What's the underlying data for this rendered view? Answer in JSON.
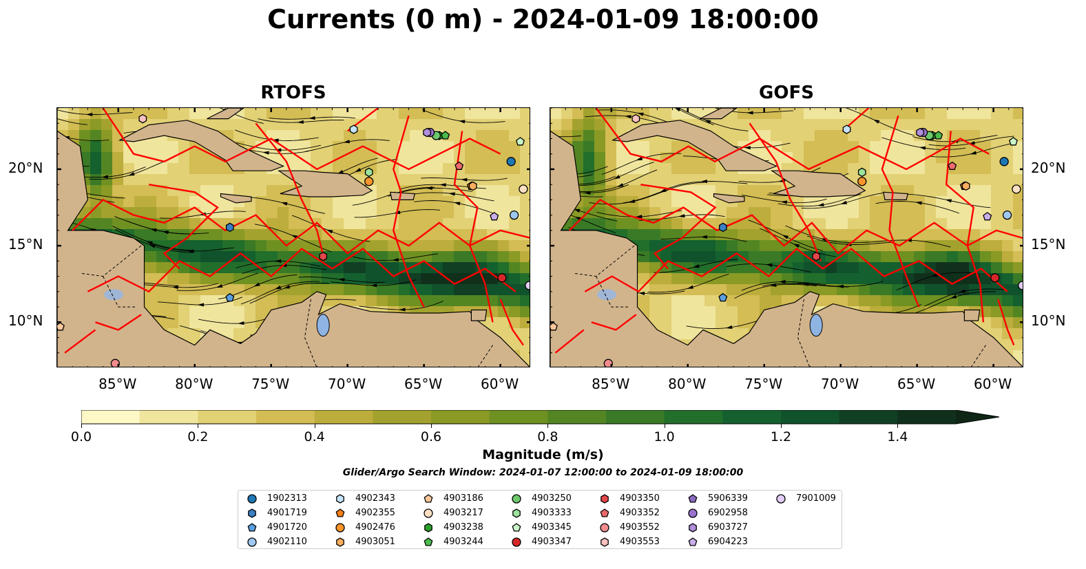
{
  "title": "Currents (0 m) - 2024-01-09 18:00:00",
  "panels": [
    {
      "title": "RTOFS"
    },
    {
      "title": "GOFS"
    }
  ],
  "x_ticks": [
    "85°W",
    "80°W",
    "75°W",
    "70°W",
    "65°W",
    "60°W"
  ],
  "x_tick_lons": [
    -85,
    -80,
    -75,
    -70,
    -65,
    -60
  ],
  "y_ticks": [
    "20°N",
    "15°N",
    "10°N"
  ],
  "y_tick_lats": [
    20,
    15,
    10
  ],
  "extent": {
    "lon": [
      -89,
      -58
    ],
    "lat": [
      7,
      24
    ]
  },
  "colorbar": {
    "label": "Magnitude (m/s)",
    "ticks": [
      "0.0",
      "0.2",
      "0.4",
      "0.6",
      "0.8",
      "1.0",
      "1.2",
      "1.4"
    ],
    "tick_values": [
      0,
      0.2,
      0.4,
      0.6,
      0.8,
      1.0,
      1.2,
      1.4
    ],
    "range": [
      0,
      1.5
    ],
    "colors": [
      "#fdf8c6",
      "#f0e59c",
      "#e2d175",
      "#d3bd54",
      "#bcad3c",
      "#a3a22e",
      "#8a9a25",
      "#6f9122",
      "#538623",
      "#3a7a26",
      "#226e2b",
      "#14612f",
      "#10522c",
      "#103f24",
      "#10301c"
    ],
    "extend_color": "#0f2616"
  },
  "search_window": "Glider/Argo Search Window: 2024-01-07 12:00:00 to 2024-01-09 18:00:00",
  "land_color": "#d2b48c",
  "track_color": "#ff0000",
  "legend": [
    {
      "id": "1902313",
      "marker": "circle",
      "color": "#1f77b4"
    },
    {
      "id": "4901719",
      "marker": "hexagon",
      "color": "#3b7fc4"
    },
    {
      "id": "4901720",
      "marker": "pentagon",
      "color": "#5a9fe0"
    },
    {
      "id": "4902110",
      "marker": "circle",
      "color": "#9ec8ef"
    },
    {
      "id": "4902343",
      "marker": "hexagon",
      "color": "#c6e4fb"
    },
    {
      "id": "4902355",
      "marker": "pentagon",
      "color": "#f57f17"
    },
    {
      "id": "4902476",
      "marker": "circle",
      "color": "#f8942c"
    },
    {
      "id": "4903051",
      "marker": "hexagon",
      "color": "#fbae5e"
    },
    {
      "id": "4903186",
      "marker": "pentagon",
      "color": "#fcc79a"
    },
    {
      "id": "4903217",
      "marker": "circle",
      "color": "#fde0c3"
    },
    {
      "id": "4903238",
      "marker": "hexagon",
      "color": "#2ca02c"
    },
    {
      "id": "4903244",
      "marker": "pentagon",
      "color": "#4cbb4c"
    },
    {
      "id": "4903250",
      "marker": "circle",
      "color": "#6cc96c"
    },
    {
      "id": "4903333",
      "marker": "hexagon",
      "color": "#9de29d"
    },
    {
      "id": "4903345",
      "marker": "pentagon",
      "color": "#c9f5c9"
    },
    {
      "id": "4903347",
      "marker": "circle",
      "color": "#d62728"
    },
    {
      "id": "4903350",
      "marker": "hexagon",
      "color": "#e3484a"
    },
    {
      "id": "4903352",
      "marker": "pentagon",
      "color": "#ec6a6c"
    },
    {
      "id": "4903552",
      "marker": "circle",
      "color": "#f28b8d"
    },
    {
      "id": "4903553",
      "marker": "hexagon",
      "color": "#f9c1c1"
    },
    {
      "id": "5906339",
      "marker": "pentagon",
      "color": "#8c6bc2"
    },
    {
      "id": "6902958",
      "marker": "circle",
      "color": "#9a72cc"
    },
    {
      "id": "6903727",
      "marker": "hexagon",
      "color": "#b08fdd"
    },
    {
      "id": "6904223",
      "marker": "pentagon",
      "color": "#c9aeea"
    },
    {
      "id": "7901009",
      "marker": "circle",
      "color": "#e2cdf5"
    }
  ],
  "floats": [
    {
      "id": "1902313",
      "lon": -59.3,
      "lat": 20.5
    },
    {
      "id": "4901719",
      "lon": -77.7,
      "lat": 16.2
    },
    {
      "id": "4901720",
      "lon": -77.7,
      "lat": 11.6
    },
    {
      "id": "4902110",
      "lon": -59.1,
      "lat": 17.0
    },
    {
      "id": "4902343",
      "lon": -69.6,
      "lat": 22.6
    },
    {
      "id": "4902355",
      "lon": -61.9,
      "lat": 18.9
    },
    {
      "id": "4902476",
      "lon": -68.6,
      "lat": 19.2
    },
    {
      "id": "4903051",
      "lon": -61.8,
      "lat": 18.9
    },
    {
      "id": "4903186",
      "lon": -88.8,
      "lat": 9.7
    },
    {
      "id": "4903217",
      "lon": -58.5,
      "lat": 18.7
    },
    {
      "id": "4903238",
      "lon": -64.0,
      "lat": 22.2
    },
    {
      "id": "4903244",
      "lon": -63.6,
      "lat": 22.2
    },
    {
      "id": "4903250",
      "lon": -64.2,
      "lat": 22.2
    },
    {
      "id": "4903333",
      "lon": -68.6,
      "lat": 19.8
    },
    {
      "id": "4903345",
      "lon": -58.7,
      "lat": 21.8
    },
    {
      "id": "4903347",
      "lon": -59.9,
      "lat": 12.9
    },
    {
      "id": "4903350",
      "lon": -71.6,
      "lat": 14.3
    },
    {
      "id": "4903352",
      "lon": -62.7,
      "lat": 20.2
    },
    {
      "id": "4903552",
      "lon": -85.2,
      "lat": 7.3
    },
    {
      "id": "4903553",
      "lon": -83.4,
      "lat": 23.3
    },
    {
      "id": "5906339",
      "lon": -64.7,
      "lat": 22.4
    },
    {
      "id": "6902958",
      "lon": -64.6,
      "lat": 22.4
    },
    {
      "id": "6903727",
      "lon": -64.8,
      "lat": 22.4
    },
    {
      "id": "6904223",
      "lon": -60.4,
      "lat": 16.9
    },
    {
      "id": "7901009",
      "lon": -58.1,
      "lat": 12.4
    }
  ]
}
